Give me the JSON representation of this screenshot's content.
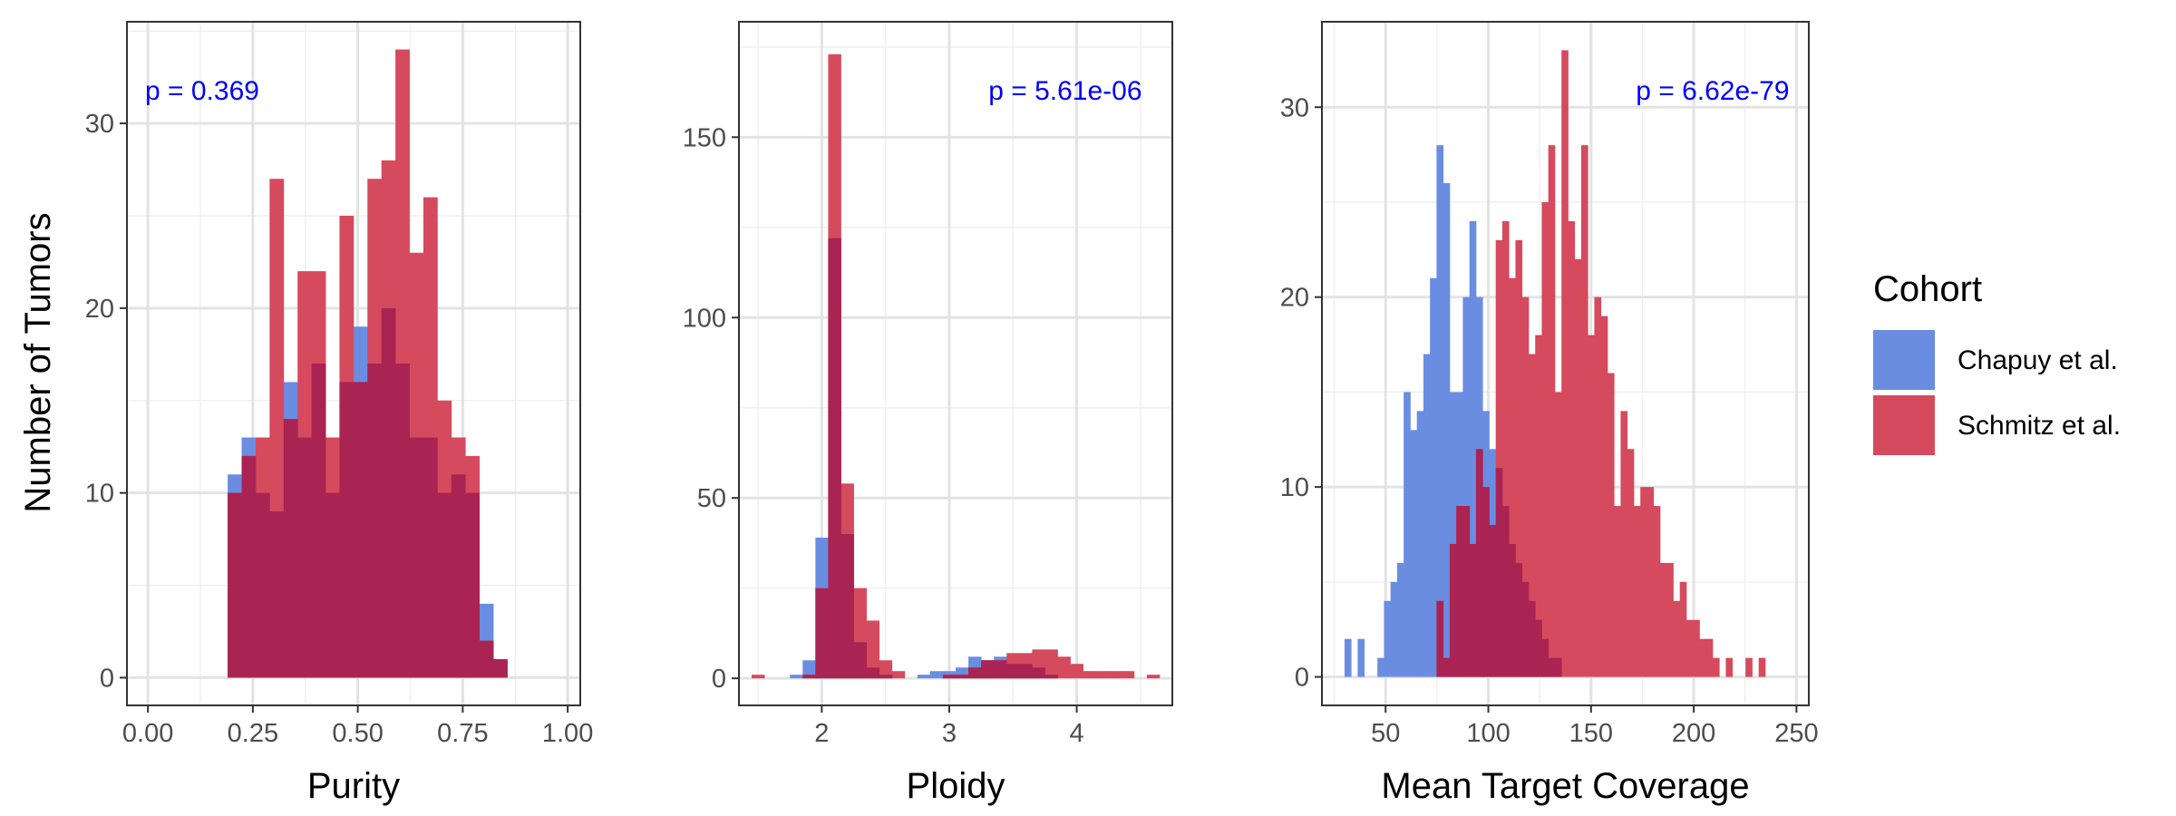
{
  "figure": {
    "ylabel": "Number of Tumors",
    "legend": {
      "title": "Cohort",
      "placement": "right",
      "entries": [
        {
          "label": "Chapuy et al.",
          "color": "#6a8de2"
        },
        {
          "label": "Schmitz et al.",
          "color": "#d54a5d"
        }
      ]
    },
    "overlap_color": "#a92452",
    "grid": true
  },
  "chart_data": [
    {
      "type": "bar",
      "xlabel": "Purity",
      "annotation": "p = 0.369",
      "xlim": [
        -0.05,
        1.03
      ],
      "ylim": [
        -1.5,
        35.5
      ],
      "xticks": [
        0,
        0.25,
        0.5,
        0.75,
        1
      ],
      "xtick_labels": [
        "0.00",
        "0.25",
        "0.50",
        "0.75",
        "1.00"
      ],
      "yticks": [
        0,
        10,
        20,
        30
      ],
      "ytick_labels": [
        "0",
        "10",
        "20",
        "30"
      ],
      "bin_width": 0.0333,
      "bin_start": 0.19,
      "series": [
        {
          "name": "Chapuy et al.",
          "values": [
            11,
            13,
            10,
            9,
            16,
            13,
            17,
            10,
            16,
            19,
            17,
            20,
            17,
            13,
            13,
            10,
            11,
            10,
            4,
            1,
            0,
            0,
            0
          ]
        },
        {
          "name": "Schmitz et al.",
          "values": [
            10,
            12,
            13,
            27,
            14,
            22,
            22,
            13,
            25,
            16,
            27,
            28,
            34,
            23,
            26,
            15,
            13,
            12,
            2,
            1,
            0,
            0,
            0
          ]
        }
      ]
    },
    {
      "type": "bar",
      "xlabel": "Ploidy",
      "annotation": "p = 5.61e-06",
      "xlim": [
        1.35,
        4.75
      ],
      "ylim": [
        -7.5,
        182
      ],
      "xticks": [
        2,
        3,
        4
      ],
      "xtick_labels": [
        "2",
        "3",
        "4"
      ],
      "yticks": [
        0,
        50,
        100,
        150
      ],
      "ytick_labels": [
        "0",
        "50",
        "100",
        "150"
      ],
      "bin_width": 0.1,
      "bin_start": 1.45,
      "series": [
        {
          "name": "Chapuy et al.",
          "values": [
            0,
            0,
            0,
            1,
            5,
            39,
            122,
            40,
            10,
            3,
            1,
            0,
            0,
            1,
            2,
            2,
            3,
            6,
            5,
            6,
            4,
            4,
            3,
            1,
            0,
            0,
            0,
            0,
            0,
            0,
            0,
            0
          ]
        },
        {
          "name": "Schmitz et al.",
          "values": [
            1,
            0,
            0,
            0,
            1,
            25,
            173,
            54,
            25,
            16,
            5,
            2,
            0,
            0,
            0,
            1,
            1,
            3,
            5,
            5,
            7,
            7,
            8,
            8,
            6,
            4,
            2,
            2,
            2,
            2,
            0,
            1
          ]
        }
      ]
    },
    {
      "type": "bar",
      "xlabel": "Mean Target Coverage",
      "annotation": "p = 6.62e-79",
      "xlim": [
        19,
        256
      ],
      "ylim": [
        -1.5,
        34.5
      ],
      "xticks": [
        50,
        100,
        150,
        200,
        250
      ],
      "xtick_labels": [
        "50",
        "100",
        "150",
        "200",
        "250"
      ],
      "yticks": [
        0,
        10,
        20,
        30
      ],
      "ytick_labels": [
        "0",
        "10",
        "20",
        "30"
      ],
      "bin_width": 3.2,
      "bin_start": 30,
      "series": [
        {
          "name": "Chapuy et al.",
          "values": [
            2,
            0,
            2,
            0,
            0,
            1,
            4,
            5,
            6,
            15,
            13,
            14,
            17,
            21,
            28,
            26,
            15,
            15,
            20,
            24,
            20,
            14,
            12,
            11,
            9,
            7,
            6,
            5,
            4,
            3,
            2,
            1,
            1,
            0,
            0,
            0,
            0,
            0,
            0,
            0,
            0,
            0,
            0,
            0,
            0,
            0,
            0,
            0,
            0,
            0,
            0,
            0,
            0,
            0,
            0,
            0,
            0,
            0,
            0,
            0,
            0,
            0,
            0,
            0,
            0,
            0,
            0,
            0,
            0,
            0
          ]
        },
        {
          "name": "Schmitz et al.",
          "values": [
            0,
            0,
            0,
            0,
            0,
            0,
            0,
            0,
            0,
            0,
            0,
            0,
            0,
            0,
            4,
            1,
            7,
            9,
            9,
            7,
            12,
            10,
            8,
            23,
            24,
            21,
            23,
            20,
            17,
            18,
            25,
            28,
            15,
            33,
            24,
            22,
            28,
            18,
            20,
            19,
            16,
            9,
            14,
            12,
            9,
            10,
            10,
            9,
            6,
            6,
            4,
            5,
            3,
            3,
            2,
            2,
            1,
            0,
            1,
            0,
            0,
            1,
            0,
            1,
            0,
            0,
            0,
            0,
            0,
            0
          ]
        }
      ]
    }
  ]
}
